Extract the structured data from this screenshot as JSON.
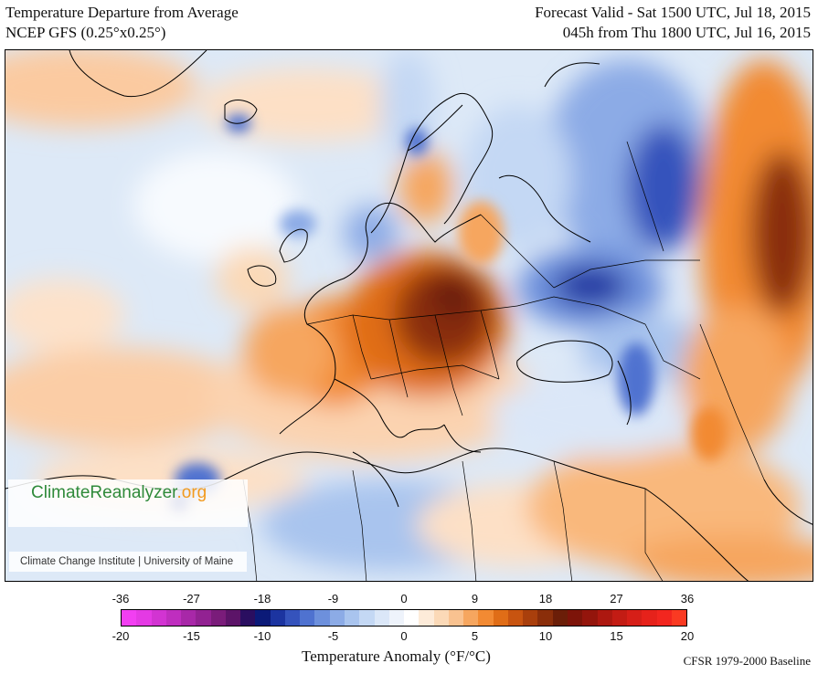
{
  "header": {
    "title": "Temperature Departure from Average",
    "model": "NCEP GFS (0.25°x0.25°)",
    "valid": "Forecast Valid - Sat 1500 UTC, Jul 18, 2015",
    "init": "045h from Thu 1800 UTC, Jul 16, 2015"
  },
  "logo": {
    "name_main": "ClimateReanalyzer",
    "name_suffix": ".org",
    "affiliation": "Climate Change Institute | University of Maine"
  },
  "colorbar": {
    "fahrenheit_ticks": [
      "-36",
      "-27",
      "-18",
      "-9",
      "0",
      "9",
      "18",
      "27",
      "36"
    ],
    "celsius_ticks": [
      "-20",
      "-15",
      "-10",
      "-5",
      "0",
      "5",
      "10",
      "15",
      "20"
    ],
    "label": "Temperature Anomaly (°F/°C)",
    "colors": [
      "#f23ff2",
      "#e43ae4",
      "#d234d2",
      "#bf2ebf",
      "#a828a8",
      "#922292",
      "#7a1c7a",
      "#5c1468",
      "#2a0e60",
      "#0b1a78",
      "#1c34a0",
      "#3553bc",
      "#4f72d0",
      "#6d90dc",
      "#8cabe6",
      "#a9c4ee",
      "#c4d8f4",
      "#dbe7f8",
      "#eef3fb",
      "#ffffff",
      "#fdebd9",
      "#fbd9b7",
      "#f9c290",
      "#f6a65f",
      "#f28a33",
      "#e06d17",
      "#c85410",
      "#a93f0c",
      "#8a2e0a",
      "#6b1e08",
      "#7d1409",
      "#94150c",
      "#ad1810",
      "#c31c14",
      "#d61f18",
      "#e6221b",
      "#f2261f",
      "#fa3a22"
    ]
  },
  "baseline": "CFSR 1979-2000 Baseline"
}
